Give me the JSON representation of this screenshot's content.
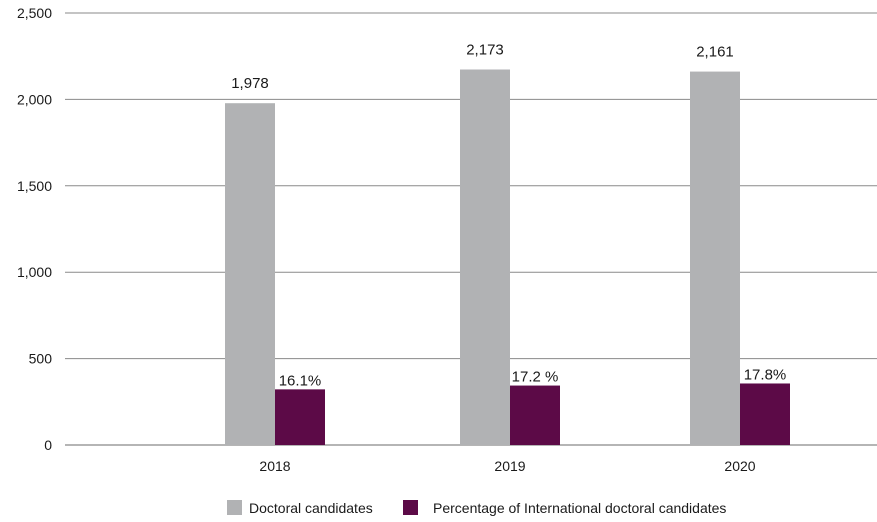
{
  "chart_data": {
    "type": "bar",
    "categories": [
      "2018",
      "2019",
      "2020"
    ],
    "series": [
      {
        "name": "Doctoral candidates",
        "color": "#b1b2b4",
        "values": [
          1978,
          2173,
          2161
        ],
        "labels": [
          "1,978",
          "2,173",
          "2,161"
        ]
      },
      {
        "name": "Percentage of International doctoral candidates",
        "color": "#5c0a47",
        "values": [
          16.1,
          17.2,
          17.8
        ],
        "labels": [
          "16.1%",
          "17.2 %",
          "17.8%"
        ]
      }
    ],
    "y_axis": {
      "ticks": [
        0,
        500,
        1000,
        1500,
        2000,
        2500
      ],
      "tick_labels": [
        "0",
        "500",
        "1,000",
        "1,500",
        "2,000",
        "2,500"
      ],
      "ylim": [
        0,
        2500
      ]
    },
    "grid": true,
    "legend": "bottom-center",
    "title": "",
    "xlabel": "",
    "ylabel": ""
  }
}
